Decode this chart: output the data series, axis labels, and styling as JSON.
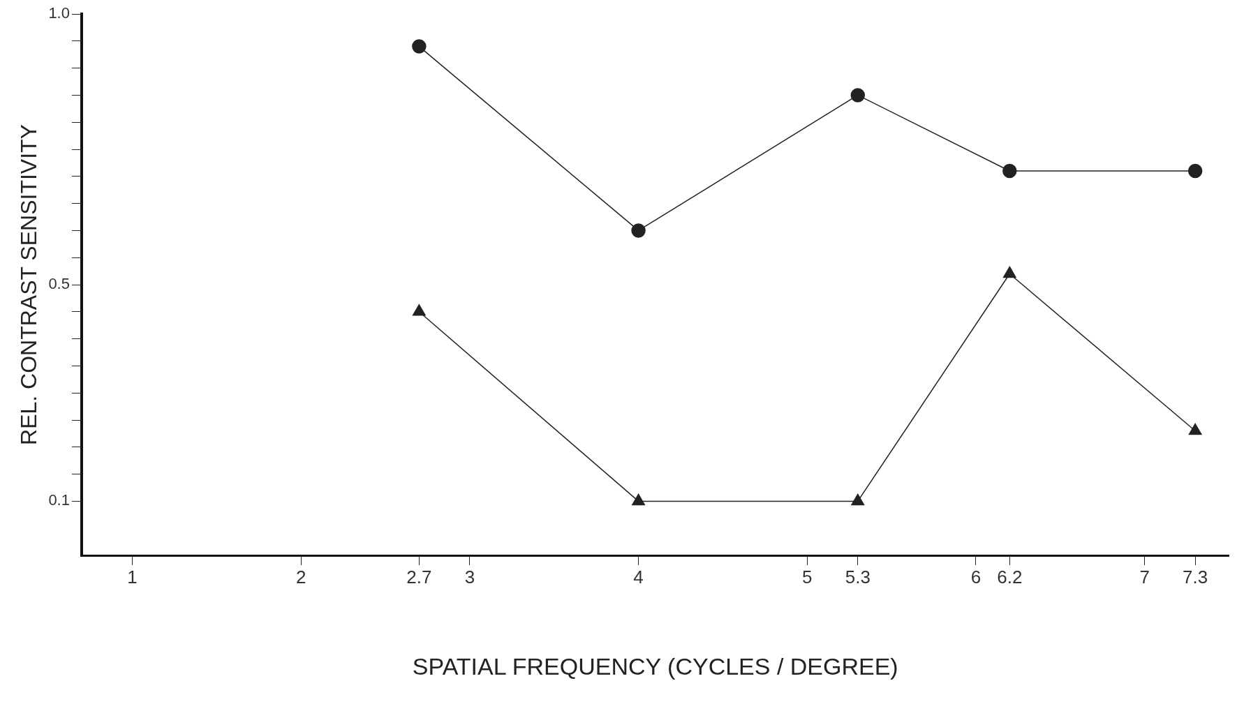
{
  "chart_data": {
    "type": "line",
    "xlabel": "SPATIAL FREQUENCY (CYCLES / DEGREE)",
    "ylabel": "REL. CONTRAST SENSITIVITY",
    "x": [
      2.7,
      4,
      5.3,
      6.2,
      7.3
    ],
    "series": [
      {
        "color": "#222222",
        "marker": "circle",
        "values": [
          0.94,
          0.6,
          0.85,
          0.71,
          0.71
        ]
      },
      {
        "color": "#222222",
        "marker": "triangle",
        "values": [
          0.45,
          0.1,
          0.1,
          0.52,
          0.23
        ]
      }
    ],
    "xlim": [
      0.7,
      7.5
    ],
    "xticks": [
      1,
      2,
      2.7,
      3,
      4,
      5,
      5.3,
      6,
      6.2,
      7,
      7.3
    ],
    "ylim": [
      0,
      1
    ],
    "yticks": [
      {
        "value": 0.1,
        "label": "0.1"
      },
      {
        "value": 0.15,
        "label": null
      },
      {
        "value": 0.2,
        "label": null
      },
      {
        "value": 0.25,
        "label": null
      },
      {
        "value": 0.3,
        "label": null
      },
      {
        "value": 0.35,
        "label": null
      },
      {
        "value": 0.4,
        "label": null
      },
      {
        "value": 0.45,
        "label": null
      },
      {
        "value": 0.5,
        "label": "0.5"
      },
      {
        "value": 0.55,
        "label": null
      },
      {
        "value": 0.6,
        "label": null
      },
      {
        "value": 0.65,
        "label": null
      },
      {
        "value": 0.7,
        "label": null
      },
      {
        "value": 0.75,
        "label": null
      },
      {
        "value": 0.8,
        "label": null
      },
      {
        "value": 0.85,
        "label": null
      },
      {
        "value": 0.9,
        "label": null
      },
      {
        "value": 0.95,
        "label": null
      },
      {
        "value": 1,
        "label": "1.0"
      }
    ],
    "grid": false,
    "legend": false,
    "line_style": "solid"
  }
}
